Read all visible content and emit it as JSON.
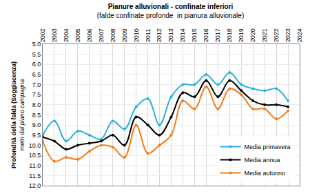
{
  "chart_data": {
    "type": "line",
    "title": "Pianure alluvionali - confinate inferiori",
    "subtitle": "(falde confinate profonde  in pianura alluvionale)",
    "y_label": "Profondità della falda (Soggiacenza)",
    "y_label_sub": "metri dal piano campagna",
    "x": [
      2002,
      2003,
      2004,
      2005,
      2006,
      2007,
      2008,
      2009,
      2010,
      2011,
      2012,
      2013,
      2014,
      2015,
      2016,
      2017,
      2018,
      2019,
      2020,
      2021,
      2022,
      2023
    ],
    "series": [
      {
        "name": "Media primavera",
        "color": "#29b0e3",
        "marker": "circle",
        "line_style": "spline",
        "values": [
          9.5,
          8.8,
          9.8,
          9.3,
          9.5,
          9.7,
          8.8,
          9.2,
          8.1,
          7.7,
          9.0,
          7.6,
          7.0,
          7.0,
          6.5,
          7.0,
          6.4,
          7.0,
          7.2,
          7.3,
          7.2,
          7.8
        ]
      },
      {
        "name": "Media annua",
        "color": "#000000",
        "marker": "circle",
        "line_style": "spline",
        "values": [
          9.6,
          9.8,
          10.2,
          10.0,
          9.9,
          9.8,
          9.5,
          10.0,
          8.6,
          9.0,
          9.5,
          8.6,
          7.4,
          7.6,
          6.8,
          7.6,
          6.8,
          7.3,
          7.8,
          8.0,
          8.0,
          8.1
        ]
      },
      {
        "name": "Media autunno",
        "color": "#f07d1a",
        "marker": "circle",
        "line_style": "spline",
        "values": [
          9.8,
          10.8,
          10.6,
          10.7,
          10.3,
          10.0,
          10.1,
          10.6,
          9.0,
          10.4,
          10.0,
          9.5,
          7.8,
          8.2,
          7.1,
          8.2,
          7.2,
          7.5,
          8.2,
          8.2,
          8.7,
          8.3
        ]
      }
    ],
    "xlim": [
      2002,
      2024
    ],
    "xticks": [
      2002,
      2003,
      2004,
      2005,
      2006,
      2007,
      2008,
      2009,
      2010,
      2011,
      2012,
      2013,
      2014,
      2015,
      2016,
      2017,
      2018,
      2019,
      2020,
      2021,
      2022,
      2023,
      2024
    ],
    "ylim": [
      12,
      5
    ],
    "yticks": [
      {
        "value": 5,
        "label": "5.0"
      },
      5.5,
      {
        "value": 6,
        "label": "6.0"
      },
      6.5,
      {
        "value": 7,
        "label": "7.0"
      },
      7.5,
      {
        "value": 8,
        "label": "8.0"
      },
      8.5,
      {
        "value": 9,
        "label": "9.0"
      },
      9.5,
      {
        "value": 10,
        "label": "10.0"
      },
      10.5,
      {
        "value": 11,
        "label": "11.0"
      },
      11.5,
      {
        "value": 12,
        "label": "12.0"
      }
    ],
    "grid": true,
    "legend": "bottom right"
  }
}
